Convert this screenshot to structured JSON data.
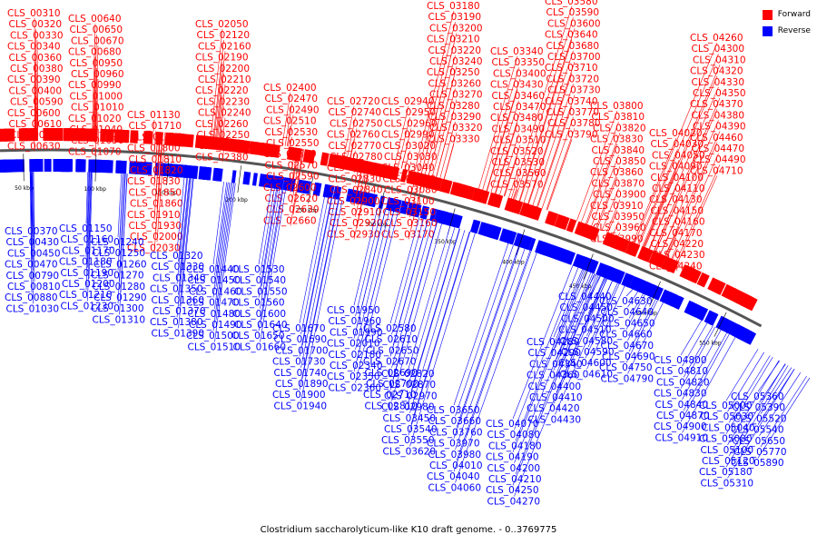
{
  "title": "Clostridium saccharolyticum-like K10 draft genome. - 0..3769775",
  "legend": [
    {
      "label": "Forward",
      "color": "#ff0000"
    },
    {
      "label": "Reverse",
      "color": "#0000ff"
    }
  ],
  "colors": {
    "forward": "#ff0000",
    "reverse": "#0000ff",
    "backbone": "#555555",
    "text": "#000000"
  },
  "axis_labels": [
    "50 kbp",
    "100 kbp",
    "150 kbp",
    "200 kbp",
    "250 kbp",
    "300 kbp",
    "350 kbp",
    "400 kbp",
    "450 kbp",
    "500 kbp",
    "550 kbp"
  ],
  "forward_labels": [
    "CLS_00310",
    "CLS_00320",
    "CLS_00330",
    "CLS_00340",
    "CLS_00360",
    "CLS_00380",
    "CLS_00390",
    "CLS_00400",
    "CLS_00590",
    "CLS_00600",
    "CLS_00610",
    "CLS_00620",
    "CLS_00630",
    "CLS_00640",
    "CLS_00650",
    "CLS_00670",
    "CLS_00680",
    "CLS_00950",
    "CLS_00960",
    "CLS_00990",
    "CLS_01000",
    "CLS_01010",
    "CLS_01020",
    "CLS_01040",
    "CLS_01050",
    "CLS_01070",
    "CLS_01130",
    "CLS_01710",
    "CLS_01770",
    "CLS_01800",
    "CLS_01810",
    "CLS_01820",
    "CLS_01830",
    "CLS_01850",
    "CLS_01860",
    "CLS_01910",
    "CLS_01930",
    "CLS_02000",
    "CLS_02030",
    "CLS_02050",
    "CLS_02120",
    "CLS_02160",
    "CLS_02190",
    "CLS_02200",
    "CLS_02210",
    "CLS_02220",
    "CLS_02230",
    "CLS_02240",
    "CLS_02260",
    "CLS_02250",
    "CLS_02320",
    "CLS_02380",
    "CLS_02400",
    "CLS_02470",
    "CLS_02490",
    "CLS_02510",
    "CLS_02530",
    "CLS_02550",
    "CLS_02560",
    "CLS_02570",
    "CLS_02590",
    "CLS_02600",
    "CLS_02620",
    "CLS_02630",
    "CLS_02660",
    "CLS_02720",
    "CLS_02740",
    "CLS_02750",
    "CLS_02760",
    "CLS_02770",
    "CLS_02780",
    "CLS_02790",
    "CLS_02830",
    "CLS_02840",
    "CLS_02900",
    "CLS_02910",
    "CLS_02920",
    "CLS_02930",
    "CLS_02940",
    "CLS_02950",
    "CLS_02960",
    "CLS_02990",
    "CLS_03020",
    "CLS_03030",
    "CLS_03040",
    "CLS_03060",
    "CLS_03080",
    "CLS_03100",
    "CLS_03150",
    "CLS_03160",
    "CLS_03170",
    "CLS_03180",
    "CLS_03190",
    "CLS_03200",
    "CLS_03210",
    "CLS_03220",
    "CLS_03240",
    "CLS_03250",
    "CLS_03260",
    "CLS_03270",
    "CLS_03280",
    "CLS_03290",
    "CLS_03320",
    "CLS_03330",
    "CLS_03340",
    "CLS_03350",
    "CLS_03400",
    "CLS_03430",
    "CLS_03460",
    "CLS_03470",
    "CLS_03480",
    "CLS_03490",
    "CLS_03510",
    "CLS_03520",
    "CLS_03530",
    "CLS_03560",
    "CLS_03570",
    "CLS_03580",
    "CLS_03590",
    "CLS_03600",
    "CLS_03640",
    "CLS_03680",
    "CLS_03700",
    "CLS_03710",
    "CLS_03720",
    "CLS_03730",
    "CLS_03740",
    "CLS_03770",
    "CLS_03780",
    "CLS_03790",
    "CLS_03800",
    "CLS_03810",
    "CLS_03820",
    "CLS_03830",
    "CLS_03840",
    "CLS_03850",
    "CLS_03860",
    "CLS_03870",
    "CLS_03900",
    "CLS_03910",
    "CLS_03950",
    "CLS_03960",
    "CLS_03990",
    "CLS_04020",
    "CLS_04030",
    "CLS_04050",
    "CLS_04090",
    "CLS_04100",
    "CLS_04110",
    "CLS_04130",
    "CLS_04150",
    "CLS_04160",
    "CLS_04170",
    "CLS_04220",
    "CLS_04230",
    "CLS_04240",
    "CLS_04260",
    "CLS_04300",
    "CLS_04310",
    "CLS_04320",
    "CLS_04330",
    "CLS_04350",
    "CLS_04370",
    "CLS_04380",
    "CLS_04390",
    "CLS_04460",
    "CLS_04470",
    "CLS_04490",
    "CLS_04710"
  ],
  "reverse_labels": [
    "CLS_00370",
    "CLS_00430",
    "CLS_00450",
    "CLS_00470",
    "CLS_00790",
    "CLS_00810",
    "CLS_00880",
    "CLS_01030",
    "CLS_01150",
    "CLS_01160",
    "CLS_01170",
    "CLS_01180",
    "CLS_01190",
    "CLS_01200",
    "CLS_01210",
    "CLS_01230",
    "CLS_01240",
    "CLS_01250",
    "CLS_01260",
    "CLS_01270",
    "CLS_01280",
    "CLS_01290",
    "CLS_01300",
    "CLS_01310",
    "CLS_01320",
    "CLS_01330",
    "CLS_01340",
    "CLS_01350",
    "CLS_01360",
    "CLS_01370",
    "CLS_01380",
    "CLS_01390",
    "CLS_01440",
    "CLS_01450",
    "CLS_01460",
    "CLS_01470",
    "CLS_01480",
    "CLS_01490",
    "CLS_01500",
    "CLS_01510",
    "CLS_01530",
    "CLS_01540",
    "CLS_01550",
    "CLS_01560",
    "CLS_01600",
    "CLS_01640",
    "CLS_01650",
    "CLS_01660",
    "CLS_01670",
    "CLS_01690",
    "CLS_01700",
    "CLS_01730",
    "CLS_01740",
    "CLS_01890",
    "CLS_01900",
    "CLS_01940",
    "CLS_01950",
    "CLS_01960",
    "CLS_01990",
    "CLS_02010",
    "CLS_02180",
    "CLS_02340",
    "CLS_02350",
    "CLS_02360",
    "CLS_02580",
    "CLS_02610",
    "CLS_02650",
    "CLS_02670",
    "CLS_02690",
    "CLS_02700",
    "CLS_02710",
    "CLS_02810",
    "CLS_02820",
    "CLS_02870",
    "CLS_02970",
    "CLS_02980",
    "CLS_03450",
    "CLS_03540",
    "CLS_03550",
    "CLS_03620",
    "CLS_03650",
    "CLS_03660",
    "CLS_03760",
    "CLS_03970",
    "CLS_03980",
    "CLS_04010",
    "CLS_04040",
    "CLS_04060",
    "CLS_04070",
    "CLS_04080",
    "CLS_04180",
    "CLS_04190",
    "CLS_04200",
    "CLS_04210",
    "CLS_04250",
    "CLS_04270",
    "CLS_04280",
    "CLS_04290",
    "CLS_04340",
    "CLS_04360",
    "CLS_04400",
    "CLS_04410",
    "CLS_04420",
    "CLS_04430",
    "CLS_04440",
    "CLS_04450",
    "CLS_04500",
    "CLS_04510",
    "CLS_04580",
    "CLS_04590",
    "CLS_04600",
    "CLS_04610",
    "CLS_04630",
    "CLS_04640",
    "CLS_04650",
    "CLS_04660",
    "CLS_04670",
    "CLS_04690",
    "CLS_04750",
    "CLS_04790",
    "CLS_04800",
    "CLS_04810",
    "CLS_04820",
    "CLS_04830",
    "CLS_04840",
    "CLS_04870",
    "CLS_04900",
    "CLS_04910",
    "CLS_05000",
    "CLS_05030",
    "CLS_05040",
    "CLS_05080",
    "CLS_05100",
    "CLS_05120",
    "CLS_05180",
    "CLS_05310",
    "CLS_05360",
    "CLS_05390",
    "CLS_05520",
    "CLS_05540",
    "CLS_05650",
    "CLS_05770",
    "CLS_05890"
  ]
}
